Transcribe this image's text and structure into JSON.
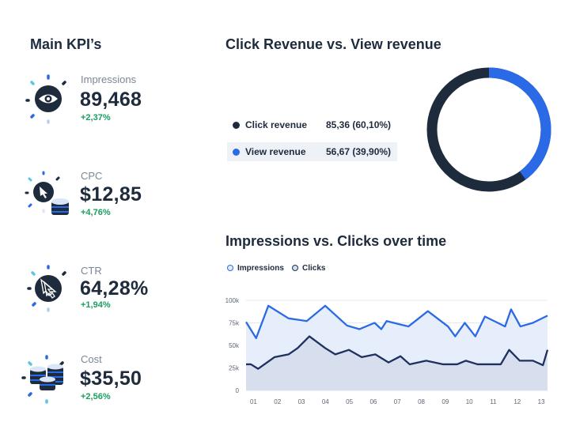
{
  "kpi": {
    "title": "Main KPI’s",
    "items": [
      {
        "label": "Impressions",
        "value": "89,468",
        "change": "+2,37%",
        "icon": "eye-icon"
      },
      {
        "label": "CPC",
        "value": "$12,85",
        "change": "+4,76%",
        "icon": "cursor-coins-icon"
      },
      {
        "label": "CTR",
        "value": "64,28%",
        "change": "+1,94%",
        "icon": "double-cursor-icon"
      },
      {
        "label": "Cost",
        "value": "$35,50",
        "change": "+2,56%",
        "icon": "coin-stacks-icon"
      }
    ]
  },
  "revenue": {
    "title": "Click Revenue vs. View revenue",
    "rows": [
      {
        "label": "Click revenue",
        "value": "85,36 (60,10%)",
        "color": "#1e2b3c",
        "percent": 60.1
      },
      {
        "label": "View revenue",
        "value": "56,67 (39,90%)",
        "color": "#2b6ae6",
        "percent": 39.9
      }
    ]
  },
  "chart_data": {
    "type": "area",
    "title": "Impressions vs. Clicks over time",
    "xlabel": "",
    "ylabel": "",
    "x_ticks": [
      "01",
      "02",
      "03",
      "04",
      "05",
      "06",
      "07",
      "08",
      "09",
      "10",
      "11",
      "12",
      "13"
    ],
    "y_ticks": [
      "0",
      "25k",
      "50k",
      "75k",
      "100k"
    ],
    "ylim": [
      0,
      100000
    ],
    "xlim": [
      0.69,
      13.26
    ],
    "legend_position": "top-left",
    "grid": true,
    "series": [
      {
        "name": "Impressions",
        "color": "#2b6ae6",
        "x": [
          0.69,
          1.11,
          1.62,
          2.46,
          3.22,
          3.99,
          4.9,
          5.42,
          6.05,
          6.33,
          6.55,
          7.46,
          8.27,
          9.11,
          9.41,
          9.81,
          10.25,
          10.65,
          11.49,
          11.74,
          12.13,
          12.65,
          13.26
        ],
        "y": [
          76000,
          58000,
          94000,
          80000,
          77000,
          94000,
          72000,
          68000,
          75000,
          68000,
          77000,
          71000,
          88000,
          71000,
          60000,
          75000,
          60000,
          82000,
          71000,
          90000,
          71000,
          75000,
          83000
        ]
      },
      {
        "name": "Clicks",
        "color": "#1e3060",
        "x": [
          0.69,
          0.89,
          1.19,
          1.88,
          2.46,
          2.84,
          3.33,
          3.99,
          4.41,
          4.98,
          5.51,
          6.08,
          6.63,
          7.13,
          7.51,
          8.2,
          8.91,
          9.49,
          9.85,
          10.34,
          11.31,
          11.66,
          12.1,
          12.65,
          13.07,
          13.26
        ],
        "y": [
          29000,
          29000,
          24000,
          37000,
          40000,
          47000,
          60000,
          47000,
          40000,
          45000,
          37000,
          40000,
          31000,
          38000,
          29000,
          33000,
          29000,
          29000,
          33000,
          29000,
          29000,
          45000,
          33000,
          33000,
          28000,
          45000
        ]
      }
    ]
  }
}
